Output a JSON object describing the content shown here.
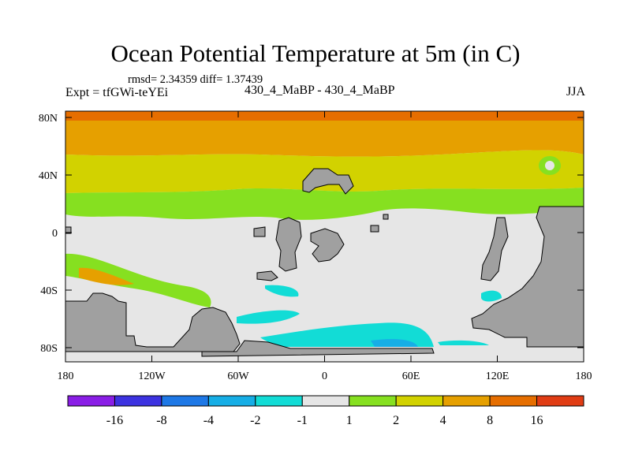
{
  "title": "Ocean Potential Temperature at 5m (in C)",
  "stats": "rmsd= 2.34359 diff= 1.37439",
  "expt": "Expt = tfGWi-teYEi",
  "case": "430_4_MaBP - 430_4_MaBP",
  "season": "JJA",
  "axes": {
    "lat_ticks": [
      "80N",
      "40N",
      "0",
      "40S",
      "80S"
    ],
    "lon_ticks": [
      "180",
      "120W",
      "60W",
      "0",
      "60E",
      "120E",
      "180"
    ]
  },
  "colorbar": {
    "labels": [
      "-16",
      "-8",
      "-4",
      "-2",
      "-1",
      "1",
      "2",
      "4",
      "8",
      "16"
    ],
    "colors": [
      "#8a1ee6",
      "#3c32e0",
      "#1e78e6",
      "#16aee6",
      "#12dcd6",
      "#e6e6e6",
      "#86e020",
      "#d2d200",
      "#e6a000",
      "#e66e00",
      "#e03c14"
    ]
  },
  "map_colors": {
    "land": "#a0a0a0",
    "neutral": "#e6e6e6",
    "warm1": "#86e020",
    "warm2": "#d2d200",
    "warm4": "#e6a000",
    "warm8": "#e66e00",
    "cool2": "#12dcd6",
    "cool4": "#16aee6"
  }
}
